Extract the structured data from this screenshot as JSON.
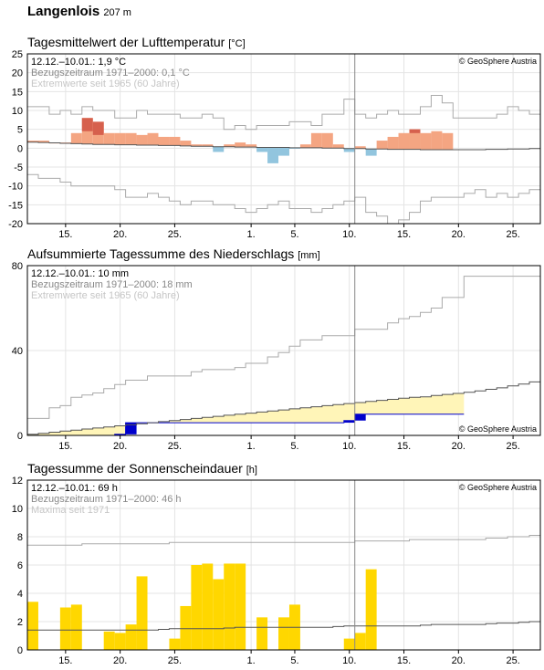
{
  "station": {
    "name": "Langenlois",
    "altitude": "207 m"
  },
  "colors": {
    "grid": "#e4e4e4",
    "frame": "#000000",
    "today": "#888888",
    "temp_warm": "#f4a582",
    "temp_warm_strong": "#d6604d",
    "temp_cold": "#92c5de",
    "precip_fill": "#fff5b8",
    "precip_sum": "#0000cc",
    "sun": "#ffd700",
    "normal_line": "#555555",
    "extreme_line": "#aaaaaa"
  },
  "x_axis": {
    "tick_labels": [
      "15.",
      "20.",
      "25.",
      "1.",
      "5.",
      "10.",
      "15.",
      "20.",
      "25."
    ],
    "tick_days": [
      3,
      8,
      13,
      20,
      24,
      29,
      34,
      39,
      44
    ],
    "days_total": 47,
    "today_index": 30
  },
  "chart_data": [
    {
      "type": "bar",
      "title": "Tagesmittelwert der Lufttemperatur",
      "unit": "[°C]",
      "ylim": [
        -20,
        25
      ],
      "yticks": [
        -20,
        -15,
        -10,
        -5,
        0,
        5,
        10,
        15,
        20,
        25
      ],
      "info": [
        "12.12.–10.01.: 1,9 °C",
        "Bezugszeitraum 1971–2000: 0,1 °C",
        "Extremwerte seit 1965 (60 Jahre)"
      ],
      "credit": "© GeoSphere Austria",
      "series": [
        {
          "name": "Tagesmittel",
          "values": [
            2,
            2,
            1.5,
            1.5,
            4,
            8,
            7,
            4,
            4,
            4,
            3.5,
            4,
            3,
            3,
            2,
            1,
            1,
            -1,
            1,
            1.5,
            1,
            -1,
            -4,
            -2,
            0,
            1,
            4,
            4,
            1,
            -1,
            0.5,
            -2,
            2,
            3,
            4,
            5,
            4,
            4.5,
            4
          ]
        },
        {
          "name": "Normal",
          "values": [
            1.6,
            1.5,
            1.4,
            1.3,
            1.2,
            1.1,
            1.0,
            1.0,
            0.9,
            0.9,
            0.8,
            0.8,
            0.7,
            0.7,
            0.6,
            0.5,
            0.5,
            0.4,
            0.4,
            0.3,
            0.3,
            0.2,
            0.2,
            0.2,
            0.1,
            0.1,
            0.1,
            0.0,
            0.0,
            -0.1,
            -0.1,
            -0.2,
            -0.2,
            -0.3,
            -0.3,
            -0.3,
            -0.4,
            -0.4,
            -0.4,
            -0.4,
            -0.4,
            -0.4,
            -0.3,
            -0.3,
            -0.2,
            -0.2,
            -0.1
          ]
        },
        {
          "name": "Maximum",
          "values": [
            11,
            11,
            9,
            10,
            9,
            11,
            10,
            10,
            8,
            8,
            10,
            9,
            9,
            9,
            8,
            8,
            9,
            8,
            5,
            6,
            5,
            6,
            6,
            6,
            7,
            7,
            6,
            9,
            9,
            13,
            9,
            8,
            9,
            10,
            9,
            9,
            11,
            14,
            12,
            8,
            8,
            8,
            8,
            9,
            11,
            10,
            9
          ]
        },
        {
          "name": "Minimum",
          "values": [
            -7,
            -8,
            -8,
            -9,
            -10,
            -10,
            -10,
            -10,
            -11,
            -13,
            -13,
            -12,
            -13,
            -14,
            -15,
            -14,
            -14,
            -15,
            -15,
            -16,
            -17,
            -16,
            -15,
            -14,
            -16,
            -16,
            -17,
            -16,
            -15,
            -14,
            -13,
            -17,
            -18,
            -20,
            -19,
            -17,
            -14,
            -13,
            -13,
            -13,
            -12,
            -11,
            -13,
            -12,
            -13,
            -12,
            -11
          ]
        }
      ]
    },
    {
      "type": "area",
      "title": "Aufsummierte Tagessumme des Niederschlags",
      "unit": "[mm]",
      "ylim": [
        0,
        80
      ],
      "yticks": [
        0,
        40,
        80
      ],
      "info": [
        "12.12.–10.01.: 10 mm",
        "Bezugszeitraum 1971–2000: 18 mm",
        "Extremwerte seit 1965 (60 Jahre)"
      ],
      "credit": "© GeoSphere Austria",
      "series": [
        {
          "name": "Summe",
          "values": [
            0,
            0,
            0,
            0,
            0,
            0,
            0,
            0,
            0.5,
            6,
            6,
            6,
            6,
            6,
            6,
            6,
            6,
            6,
            6,
            6,
            6,
            6,
            6,
            6,
            6,
            6,
            6,
            6,
            6,
            7,
            10,
            10,
            10,
            10,
            10,
            10,
            10,
            10,
            10,
            10
          ]
        },
        {
          "name": "Normal",
          "values": [
            0.5,
            1,
            1.5,
            2,
            2.5,
            3,
            3.5,
            4,
            4.5,
            5,
            5.5,
            6,
            6.5,
            7,
            7.5,
            8,
            8.5,
            9,
            9.5,
            10,
            10.5,
            11,
            11.5,
            12,
            12.5,
            13,
            13.5,
            14,
            14.5,
            15,
            15.5,
            16,
            16.5,
            17,
            17.5,
            18,
            18.2,
            18.8,
            19.3,
            19.8,
            20.3,
            21,
            21.7,
            22.4,
            23.3,
            24.2,
            25.2
          ]
        },
        {
          "name": "Maximum",
          "values": [
            8,
            8,
            13,
            14,
            18,
            19,
            20,
            22,
            24,
            26,
            26,
            28,
            28,
            28,
            28,
            30,
            31,
            31,
            31,
            32,
            34,
            34,
            37,
            39,
            42,
            45,
            45,
            47,
            47,
            47,
            50,
            50,
            50,
            53,
            55,
            56,
            58,
            60,
            65,
            65,
            75,
            75,
            75,
            75,
            75,
            75,
            75
          ]
        }
      ]
    },
    {
      "type": "bar",
      "title": "Tagessumme der Sonnenscheindauer",
      "unit": "[h]",
      "ylim": [
        0,
        12
      ],
      "yticks": [
        0,
        2,
        4,
        6,
        8,
        10,
        12
      ],
      "info": [
        "12.12.–10.01.: 69 h",
        "Bezugszeitraum 1971–2000: 46 h",
        "Maxima seit 1971"
      ],
      "credit": "© GeoSphere Austria",
      "series": [
        {
          "name": "Sonnenscheindauer",
          "values": [
            3.4,
            0,
            0,
            3.0,
            3.2,
            0,
            0,
            1.3,
            1.2,
            1.8,
            5.2,
            0,
            0,
            0.8,
            3.1,
            6.0,
            6.1,
            5.0,
            6.1,
            6.1,
            0,
            2.3,
            0,
            2.3,
            3.2,
            0,
            0,
            0,
            0,
            0.8,
            1.2,
            5.7
          ]
        },
        {
          "name": "Normal",
          "values": [
            1.4,
            1.4,
            1.4,
            1.4,
            1.4,
            1.4,
            1.4,
            1.4,
            1.4,
            1.4,
            1.4,
            1.4,
            1.45,
            1.5,
            1.5,
            1.5,
            1.5,
            1.5,
            1.55,
            1.6,
            1.6,
            1.6,
            1.6,
            1.6,
            1.6,
            1.6,
            1.6,
            1.6,
            1.65,
            1.7,
            1.7,
            1.7,
            1.7,
            1.7,
            1.7,
            1.7,
            1.75,
            1.8,
            1.8,
            1.8,
            1.8,
            1.8,
            1.85,
            1.9,
            1.9,
            1.95,
            2.0
          ]
        },
        {
          "name": "Maximum",
          "values": [
            7.4,
            7.4,
            7.4,
            7.4,
            7.4,
            7.5,
            7.5,
            7.5,
            7.5,
            7.5,
            7.5,
            7.5,
            7.5,
            7.6,
            7.6,
            7.6,
            7.6,
            7.6,
            7.6,
            7.6,
            7.6,
            7.6,
            7.6,
            7.6,
            7.6,
            7.6,
            7.6,
            7.6,
            7.6,
            7.6,
            7.7,
            7.7,
            7.7,
            7.7,
            7.7,
            7.8,
            7.8,
            7.8,
            7.8,
            7.8,
            7.8,
            7.8,
            7.9,
            7.9,
            8.0,
            8.0,
            8.1
          ]
        }
      ]
    }
  ]
}
